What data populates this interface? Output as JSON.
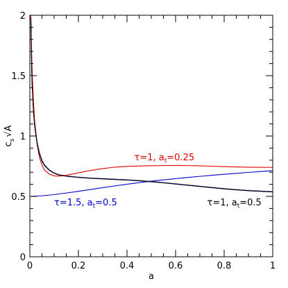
{
  "chart_data": {
    "type": "line",
    "xlabel": "a",
    "ylabel": "c_s √A",
    "ylabel_parts": {
      "main": "c",
      "sub": "s",
      "tail": "A"
    },
    "xlim": [
      0,
      1
    ],
    "ylim": [
      0,
      2
    ],
    "x_ticks": [
      0,
      0.2,
      0.4,
      0.6,
      0.8,
      1
    ],
    "x_tick_labels": [
      "0",
      "0.2",
      "0.4",
      "0.6",
      "0.8",
      "1"
    ],
    "y_ticks": [
      0,
      0.5,
      1,
      1.5,
      2
    ],
    "y_tick_labels": [
      "0",
      "0.5",
      "1",
      "1.5",
      "2"
    ],
    "grid": false,
    "series": [
      {
        "color": "#000000",
        "dash": "2,2",
        "x": [
          0.004,
          0.006,
          0.008,
          0.01,
          0.015,
          0.02,
          0.03,
          0.04,
          0.05,
          0.06,
          0.08,
          0.1,
          0.12,
          0.15,
          0.2,
          0.25,
          0.3,
          0.35,
          0.4,
          0.45,
          0.5,
          0.55,
          0.6,
          0.65,
          0.7,
          0.75,
          0.8,
          0.85,
          0.9,
          0.95,
          1.0
        ],
        "y": [
          2.0,
          1.75,
          1.55,
          1.42,
          1.22,
          1.1,
          0.95,
          0.86,
          0.8,
          0.765,
          0.72,
          0.695,
          0.68,
          0.67,
          0.66,
          0.652,
          0.648,
          0.643,
          0.638,
          0.632,
          0.625,
          0.615,
          0.605,
          0.595,
          0.585,
          0.575,
          0.565,
          0.557,
          0.55,
          0.545,
          0.54
        ]
      },
      {
        "color": "#0000cc",
        "dash": "",
        "x": [
          0.004,
          0.006,
          0.008,
          0.01,
          0.015,
          0.02,
          0.03,
          0.04,
          0.05,
          0.06,
          0.08,
          0.1,
          0.12,
          0.15,
          0.2,
          0.25,
          0.3,
          0.35,
          0.4,
          0.45,
          0.5,
          0.55,
          0.6,
          0.65,
          0.7,
          0.75,
          0.8,
          0.85,
          0.9,
          0.95,
          1.0
        ],
        "y": [
          2.0,
          1.74,
          1.54,
          1.41,
          1.21,
          1.09,
          0.94,
          0.855,
          0.795,
          0.76,
          0.718,
          0.693,
          0.678,
          0.668,
          0.658,
          0.651,
          0.646,
          0.641,
          0.636,
          0.63,
          0.622,
          0.613,
          0.603,
          0.593,
          0.583,
          0.573,
          0.563,
          0.555,
          0.548,
          0.543,
          0.538
        ]
      },
      {
        "color": "#dd0000",
        "dash": "",
        "x": [
          0.004,
          0.006,
          0.008,
          0.01,
          0.015,
          0.02,
          0.03,
          0.04,
          0.05,
          0.06,
          0.08,
          0.1,
          0.12,
          0.15,
          0.2,
          0.25,
          0.3,
          0.35,
          0.4,
          0.45,
          0.5,
          0.55,
          0.6,
          0.65,
          0.7,
          0.75,
          0.8,
          0.85,
          0.9,
          0.95,
          1.0
        ],
        "y": [
          2.0,
          1.8,
          1.65,
          1.5,
          1.28,
          1.12,
          0.93,
          0.82,
          0.76,
          0.72,
          0.685,
          0.67,
          0.668,
          0.675,
          0.695,
          0.715,
          0.73,
          0.742,
          0.749,
          0.752,
          0.754,
          0.755,
          0.756,
          0.755,
          0.753,
          0.75,
          0.747,
          0.744,
          0.742,
          0.741,
          0.74
        ]
      },
      {
        "color": "#0000cc",
        "dash": "",
        "x": [
          0,
          0.05,
          0.1,
          0.15,
          0.2,
          0.25,
          0.3,
          0.35,
          0.4,
          0.45,
          0.5,
          0.55,
          0.6,
          0.65,
          0.7,
          0.75,
          0.8,
          0.85,
          0.9,
          0.95,
          1.0
        ],
        "y": [
          0.5,
          0.505,
          0.515,
          0.528,
          0.542,
          0.557,
          0.572,
          0.587,
          0.601,
          0.614,
          0.626,
          0.637,
          0.647,
          0.657,
          0.666,
          0.675,
          0.683,
          0.691,
          0.699,
          0.706,
          0.713
        ]
      },
      {
        "color": "#000000",
        "dash": "",
        "x": [
          0.004,
          0.006,
          0.008,
          0.01,
          0.015,
          0.02,
          0.03,
          0.04,
          0.05,
          0.06,
          0.08,
          0.1,
          0.12,
          0.15,
          0.2,
          0.25,
          0.3,
          0.35,
          0.4,
          0.45,
          0.5,
          0.55,
          0.6,
          0.65,
          0.7,
          0.75,
          0.8,
          0.85,
          0.9,
          0.95,
          1.0
        ],
        "y": [
          1.98,
          1.72,
          1.52,
          1.4,
          1.2,
          1.08,
          0.935,
          0.85,
          0.79,
          0.757,
          0.716,
          0.692,
          0.677,
          0.667,
          0.657,
          0.65,
          0.645,
          0.64,
          0.635,
          0.629,
          0.621,
          0.612,
          0.602,
          0.592,
          0.582,
          0.572,
          0.562,
          0.554,
          0.547,
          0.542,
          0.537
        ]
      }
    ],
    "annotations": [
      {
        "color": "#dd0000",
        "tau": "τ=1, a",
        "sub": "t",
        "rest": "=0.25",
        "x": 0.43,
        "y": 0.8
      },
      {
        "color": "#0000cc",
        "tau": "τ=1.5, a",
        "sub": "t",
        "rest": "=0.5",
        "x": 0.1,
        "y": 0.425
      },
      {
        "color": "#000000",
        "tau": "τ=1, a",
        "sub": "t",
        "rest": "=0.5",
        "x": 0.73,
        "y": 0.425
      }
    ]
  }
}
